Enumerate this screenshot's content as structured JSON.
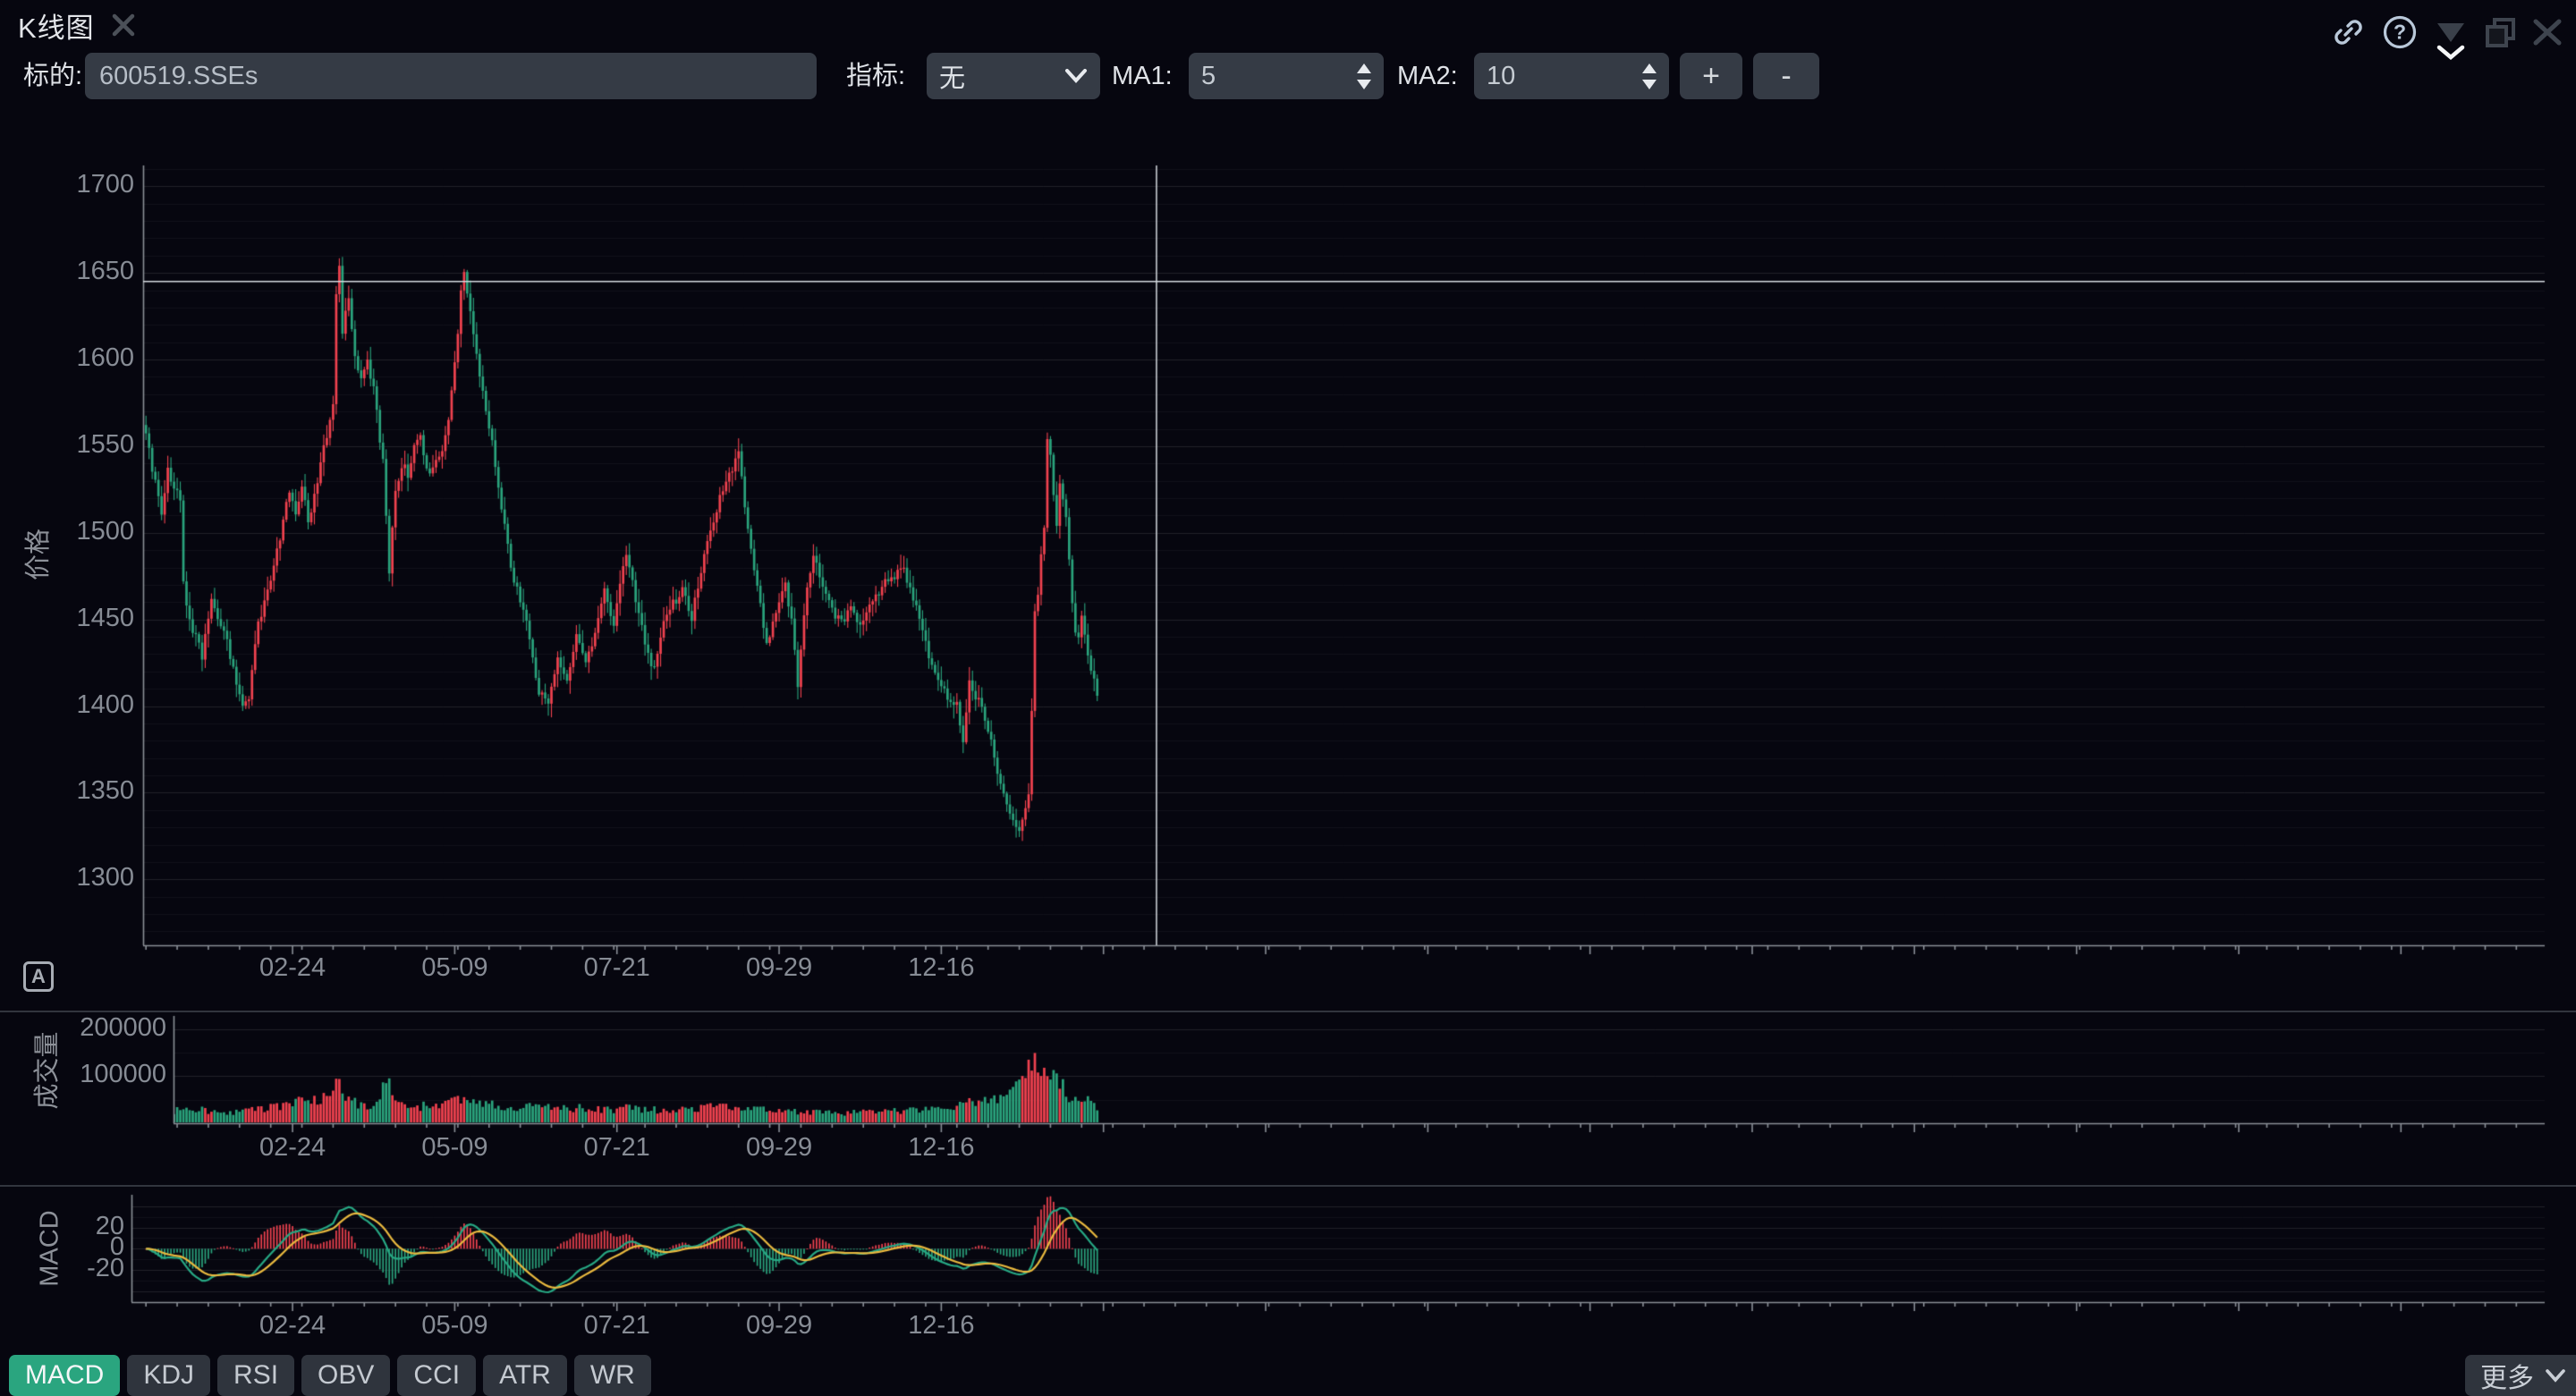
{
  "window": {
    "title": "K线图"
  },
  "toolbar": {
    "symbol_label": "标的:",
    "symbol_value": "600519.SSEs",
    "indicator_label": "指标:",
    "indicator_value": "无",
    "ma1_label": "MA1:",
    "ma1_value": "5",
    "ma2_label": "MA2:",
    "ma2_value": "10",
    "zoom_in_label": "+",
    "zoom_out_label": "-"
  },
  "titlebar_icons": [
    "link-icon",
    "help-icon",
    "caret-down-icon",
    "chevron-down-icon",
    "restore-windows-icon",
    "close-icon"
  ],
  "indicator_tabs": {
    "items": [
      "MACD",
      "KDJ",
      "RSI",
      "OBV",
      "CCI",
      "ATR",
      "WR"
    ],
    "selected": "MACD",
    "more_label": "更多"
  },
  "axes_tool_label": "A",
  "chart_data": {
    "type": "candlestick",
    "panes": [
      {
        "name": "price",
        "ylabel": "价格",
        "yticks": [
          1300,
          1350,
          1400,
          1450,
          1500,
          1550,
          1600,
          1650,
          1700
        ],
        "ylim": [
          1262,
          1712
        ],
        "grid": "horizontal"
      },
      {
        "name": "volume",
        "ylabel": "成交量",
        "yticks": [
          100000,
          200000
        ],
        "ylim": [
          0,
          228000
        ],
        "grid": "horizontal"
      },
      {
        "name": "macd",
        "ylabel": "MACD",
        "yticks": [
          -20,
          0,
          20
        ],
        "ylim": [
          -50.5,
          51
        ],
        "grid": "horizontal"
      }
    ],
    "x_tick_labels": [
      "02-24",
      "05-09",
      "07-21",
      "09-29",
      "12-16"
    ],
    "x_tick_first_index": 47,
    "x_tick_step": 52,
    "n_points": 306,
    "price_anchors": [
      [
        0,
        1560
      ],
      [
        1,
        1548
      ],
      [
        3,
        1528
      ],
      [
        5,
        1512
      ],
      [
        7,
        1536
      ],
      [
        9,
        1526
      ],
      [
        11,
        1518
      ],
      [
        12,
        1472
      ],
      [
        14,
        1448
      ],
      [
        16,
        1440
      ],
      [
        18,
        1428
      ],
      [
        21,
        1462
      ],
      [
        23,
        1452
      ],
      [
        26,
        1438
      ],
      [
        29,
        1412
      ],
      [
        31,
        1400
      ],
      [
        33,
        1404
      ],
      [
        35,
        1438
      ],
      [
        38,
        1462
      ],
      [
        41,
        1482
      ],
      [
        44,
        1505
      ],
      [
        46,
        1525
      ],
      [
        48,
        1512
      ],
      [
        50,
        1528
      ],
      [
        52,
        1505
      ],
      [
        54,
        1522
      ],
      [
        56,
        1540
      ],
      [
        58,
        1556
      ],
      [
        60,
        1572
      ],
      [
        61,
        1638
      ],
      [
        62,
        1655
      ],
      [
        63,
        1616
      ],
      [
        65,
        1636
      ],
      [
        67,
        1603
      ],
      [
        69,
        1589
      ],
      [
        71,
        1597
      ],
      [
        73,
        1583
      ],
      [
        76,
        1540
      ],
      [
        78,
        1478
      ],
      [
        80,
        1526
      ],
      [
        82,
        1540
      ],
      [
        84,
        1534
      ],
      [
        86,
        1548
      ],
      [
        88,
        1556
      ],
      [
        90,
        1538
      ],
      [
        92,
        1536
      ],
      [
        94,
        1546
      ],
      [
        96,
        1554
      ],
      [
        98,
        1580
      ],
      [
        100,
        1612
      ],
      [
        101,
        1640
      ],
      [
        102,
        1648
      ],
      [
        104,
        1630
      ],
      [
        107,
        1590
      ],
      [
        110,
        1563
      ],
      [
        112,
        1538
      ],
      [
        114,
        1514
      ],
      [
        118,
        1472
      ],
      [
        122,
        1448
      ],
      [
        126,
        1408
      ],
      [
        129,
        1400
      ],
      [
        132,
        1426
      ],
      [
        135,
        1412
      ],
      [
        138,
        1440
      ],
      [
        141,
        1428
      ],
      [
        144,
        1440
      ],
      [
        147,
        1466
      ],
      [
        150,
        1448
      ],
      [
        154,
        1488
      ],
      [
        158,
        1452
      ],
      [
        161,
        1428
      ],
      [
        163,
        1420
      ],
      [
        166,
        1448
      ],
      [
        169,
        1460
      ],
      [
        172,
        1466
      ],
      [
        175,
        1452
      ],
      [
        178,
        1478
      ],
      [
        181,
        1502
      ],
      [
        184,
        1520
      ],
      [
        187,
        1534
      ],
      [
        190,
        1546
      ],
      [
        193,
        1500
      ],
      [
        196,
        1468
      ],
      [
        199,
        1437
      ],
      [
        202,
        1452
      ],
      [
        205,
        1470
      ],
      [
        207,
        1450
      ],
      [
        209,
        1414
      ],
      [
        212,
        1468
      ],
      [
        214,
        1488
      ],
      [
        217,
        1470
      ],
      [
        220,
        1455
      ],
      [
        223,
        1448
      ],
      [
        226,
        1458
      ],
      [
        229,
        1448
      ],
      [
        233,
        1460
      ],
      [
        236,
        1470
      ],
      [
        239,
        1472
      ],
      [
        242,
        1482
      ],
      [
        245,
        1470
      ],
      [
        248,
        1450
      ],
      [
        251,
        1430
      ],
      [
        254,
        1418
      ],
      [
        257,
        1405
      ],
      [
        260,
        1400
      ],
      [
        262,
        1380
      ],
      [
        264,
        1414
      ],
      [
        266,
        1404
      ],
      [
        268,
        1400
      ],
      [
        271,
        1380
      ],
      [
        274,
        1354
      ],
      [
        277,
        1338
      ],
      [
        280,
        1328
      ],
      [
        282,
        1340
      ],
      [
        283,
        1352
      ],
      [
        284,
        1400
      ],
      [
        285,
        1452
      ],
      [
        286,
        1462
      ],
      [
        287,
        1488
      ],
      [
        288,
        1500
      ],
      [
        289,
        1556
      ],
      [
        290,
        1548
      ],
      [
        291,
        1522
      ],
      [
        292,
        1505
      ],
      [
        293,
        1528
      ],
      [
        294,
        1520
      ],
      [
        295,
        1508
      ],
      [
        296,
        1486
      ],
      [
        297,
        1460
      ],
      [
        298,
        1445
      ],
      [
        299,
        1440
      ],
      [
        300,
        1452
      ],
      [
        302,
        1430
      ],
      [
        304,
        1415
      ],
      [
        305,
        1405
      ]
    ],
    "volume_anchors": [
      [
        0,
        20000
      ],
      [
        8,
        26000
      ],
      [
        15,
        30000
      ],
      [
        22,
        26000
      ],
      [
        30,
        24000
      ],
      [
        38,
        30000
      ],
      [
        45,
        42000
      ],
      [
        52,
        55000
      ],
      [
        56,
        48000
      ],
      [
        60,
        70000
      ],
      [
        62,
        92000
      ],
      [
        64,
        60000
      ],
      [
        68,
        38000
      ],
      [
        72,
        30000
      ],
      [
        75,
        55000
      ],
      [
        77,
        98000
      ],
      [
        79,
        62000
      ],
      [
        83,
        40000
      ],
      [
        88,
        36000
      ],
      [
        93,
        42000
      ],
      [
        98,
        46000
      ],
      [
        102,
        50000
      ],
      [
        106,
        44000
      ],
      [
        110,
        40000
      ],
      [
        115,
        36000
      ],
      [
        120,
        34000
      ],
      [
        125,
        38000
      ],
      [
        130,
        32000
      ],
      [
        135,
        30000
      ],
      [
        140,
        34000
      ],
      [
        145,
        30000
      ],
      [
        150,
        28000
      ],
      [
        155,
        34000
      ],
      [
        160,
        30000
      ],
      [
        165,
        28000
      ],
      [
        170,
        30000
      ],
      [
        175,
        28000
      ],
      [
        180,
        34000
      ],
      [
        185,
        36000
      ],
      [
        190,
        38000
      ],
      [
        195,
        32000
      ],
      [
        200,
        28000
      ],
      [
        205,
        26000
      ],
      [
        210,
        25000
      ],
      [
        215,
        24000
      ],
      [
        220,
        23000
      ],
      [
        225,
        22000
      ],
      [
        230,
        23000
      ],
      [
        235,
        24000
      ],
      [
        240,
        26000
      ],
      [
        245,
        28000
      ],
      [
        250,
        30000
      ],
      [
        255,
        34000
      ],
      [
        260,
        38000
      ],
      [
        264,
        42000
      ],
      [
        268,
        46000
      ],
      [
        272,
        54000
      ],
      [
        276,
        64000
      ],
      [
        280,
        80000
      ],
      [
        283,
        110000
      ],
      [
        285,
        196000
      ],
      [
        286,
        120000
      ],
      [
        288,
        148000
      ],
      [
        290,
        128000
      ],
      [
        292,
        100000
      ],
      [
        294,
        78000
      ],
      [
        296,
        62000
      ],
      [
        298,
        56000
      ],
      [
        300,
        50000
      ],
      [
        302,
        46000
      ],
      [
        304,
        38000
      ],
      [
        305,
        36000
      ]
    ],
    "macd_params": {
      "computed_from": "closes",
      "fast": 12,
      "slow": 26,
      "signal": 9,
      "histogram_scale": 2
    },
    "crosshair": {
      "x_index": 324,
      "price": 1645
    },
    "annotation_hline_price": 1645,
    "colors": {
      "up": "#f0424f",
      "down": "#2aa37c",
      "macd_dif_line": "#27a884",
      "macd_dea_line": "#e9b93f",
      "crosshair": "#d5dae0",
      "tab_selected_bg": "#2aa57f",
      "titlebar_accent_icon": "#b9c8d9",
      "background": "#06060f"
    }
  }
}
